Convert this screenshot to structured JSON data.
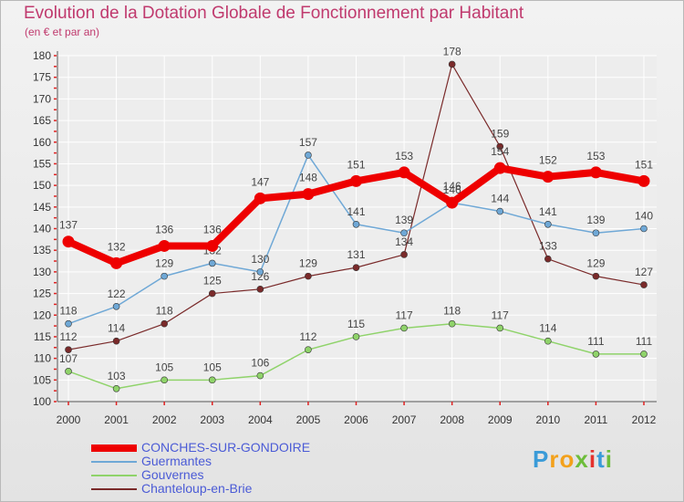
{
  "chart_data": {
    "type": "line",
    "title": "Evolution de la Dotation Globale de Fonctionnement par Habitant",
    "subtitle": "(en € et par an)",
    "x": [
      "2000",
      "2001",
      "2002",
      "2003",
      "2004",
      "2005",
      "2006",
      "2007",
      "2008",
      "2009",
      "2010",
      "2011",
      "2012"
    ],
    "ylim": [
      100,
      180
    ],
    "yticks": [
      100,
      105,
      110,
      115,
      120,
      125,
      130,
      135,
      140,
      145,
      150,
      155,
      160,
      165,
      170,
      175,
      180
    ],
    "grid": true,
    "legend_position": "bottom-left",
    "series": [
      {
        "name": "Chanteloup-en-Brie",
        "color": "#7a2a2a",
        "width": 1.2,
        "values": [
          112,
          114,
          118,
          125,
          126,
          129,
          131,
          134,
          178,
          159,
          133,
          129,
          127
        ]
      },
      {
        "name": "Gouvernes",
        "color": "#8fd36a",
        "width": 1.5,
        "values": [
          107,
          103,
          105,
          105,
          106,
          112,
          115,
          117,
          118,
          117,
          114,
          111,
          111
        ]
      },
      {
        "name": "Guermantes",
        "color": "#6fa8d6",
        "width": 1.5,
        "values": [
          118,
          122,
          129,
          132,
          130,
          157,
          141,
          139,
          146,
          144,
          141,
          139,
          140
        ]
      },
      {
        "name": "CONCHES-SUR-GONDOIRE",
        "color": "#ee0000",
        "width": 8,
        "values": [
          137,
          132,
          136,
          136,
          147,
          148,
          151,
          153,
          146,
          154,
          152,
          153,
          151
        ]
      }
    ],
    "legend_order": [
      "CONCHES-SUR-GONDOIRE",
      "Guermantes",
      "Gouvernes",
      "Chanteloup-en-Brie"
    ]
  },
  "brand": {
    "letters": [
      "P",
      "r",
      "o",
      "x",
      "i",
      "t",
      "i"
    ],
    "colors": [
      "#3a9bd8",
      "#f3a11b",
      "#f3a11b",
      "#6dbd3b",
      "#e4312d",
      "#3a9bd8",
      "#6dbd3b"
    ]
  }
}
